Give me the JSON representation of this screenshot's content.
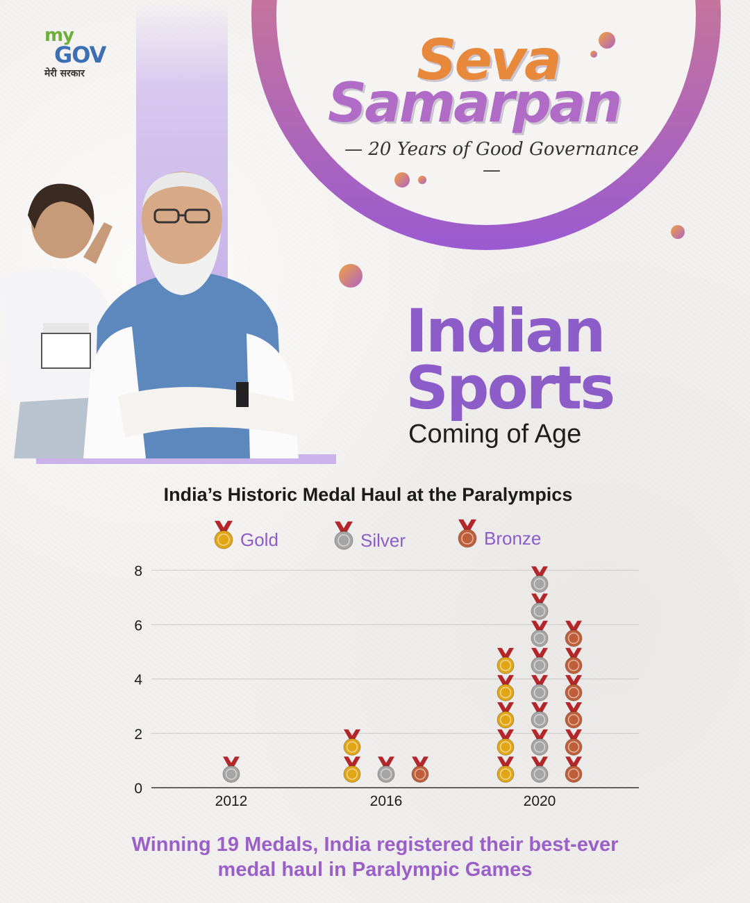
{
  "brand": {
    "logo_my": "my",
    "logo_gov": "GOV",
    "logo_hindi": "मेरी सरकार"
  },
  "banner": {
    "title_line1": "Seva",
    "title_line2": "Samarpan",
    "tagline": "— 20 Years of Good Governance —"
  },
  "headline": {
    "line1": "Indian",
    "line2": "Sports",
    "sub": "Coming of Age"
  },
  "colors": {
    "purple": "#8c5cc8",
    "gold": "#e1a615",
    "silver": "#a5a5a5",
    "bronze": "#bf5f3a",
    "ribbon": "#b3262a"
  },
  "chart_data": {
    "type": "bar",
    "title": "India’s Historic Medal Haul at the Paralympics",
    "categories": [
      "2012",
      "2016",
      "2020"
    ],
    "series": [
      {
        "name": "Gold",
        "values": [
          0,
          2,
          5
        ],
        "color": "#e1a615"
      },
      {
        "name": "Silver",
        "values": [
          1,
          1,
          8
        ],
        "color": "#a5a5a5"
      },
      {
        "name": "Bronze",
        "values": [
          0,
          1,
          6
        ],
        "color": "#bf5f3a"
      }
    ],
    "ylim": [
      0,
      8
    ],
    "yticks": [
      "0",
      "2",
      "4",
      "6",
      "8"
    ],
    "grid": true,
    "legend_position": "top",
    "marker": "medal"
  },
  "footer": {
    "line1": "Winning 19 Medals, India registered their best-ever",
    "line2": "medal haul in Paralympic Games"
  }
}
